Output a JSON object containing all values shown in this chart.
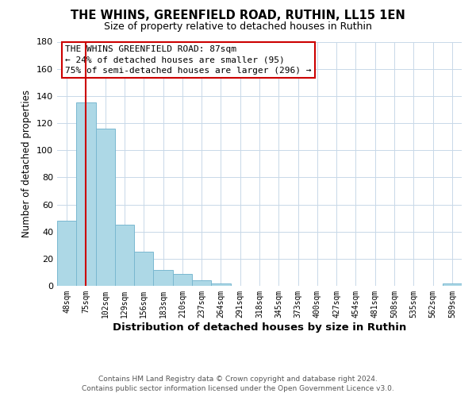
{
  "title": "THE WHINS, GREENFIELD ROAD, RUTHIN, LL15 1EN",
  "subtitle": "Size of property relative to detached houses in Ruthin",
  "xlabel": "Distribution of detached houses by size in Ruthin",
  "ylabel": "Number of detached properties",
  "bar_labels": [
    "48sqm",
    "75sqm",
    "102sqm",
    "129sqm",
    "156sqm",
    "183sqm",
    "210sqm",
    "237sqm",
    "264sqm",
    "291sqm",
    "318sqm",
    "345sqm",
    "373sqm",
    "400sqm",
    "427sqm",
    "454sqm",
    "481sqm",
    "508sqm",
    "535sqm",
    "562sqm",
    "589sqm"
  ],
  "bar_values": [
    48,
    135,
    116,
    45,
    25,
    12,
    9,
    4,
    2,
    0,
    0,
    0,
    0,
    0,
    0,
    0,
    0,
    0,
    0,
    0,
    2
  ],
  "bar_color": "#add8e6",
  "bar_edge_color": "#7ab8d0",
  "ylim": [
    0,
    180
  ],
  "yticks": [
    0,
    20,
    40,
    60,
    80,
    100,
    120,
    140,
    160,
    180
  ],
  "property_line_x": 1.0,
  "property_line_color": "#cc0000",
  "annotation_title": "THE WHINS GREENFIELD ROAD: 87sqm",
  "annotation_line1": "← 24% of detached houses are smaller (95)",
  "annotation_line2": "75% of semi-detached houses are larger (296) →",
  "annotation_box_color": "#ffffff",
  "annotation_box_edge": "#cc0000",
  "footer1": "Contains HM Land Registry data © Crown copyright and database right 2024.",
  "footer2": "Contains public sector information licensed under the Open Government Licence v3.0.",
  "background_color": "#ffffff",
  "grid_color": "#c8d8e8"
}
